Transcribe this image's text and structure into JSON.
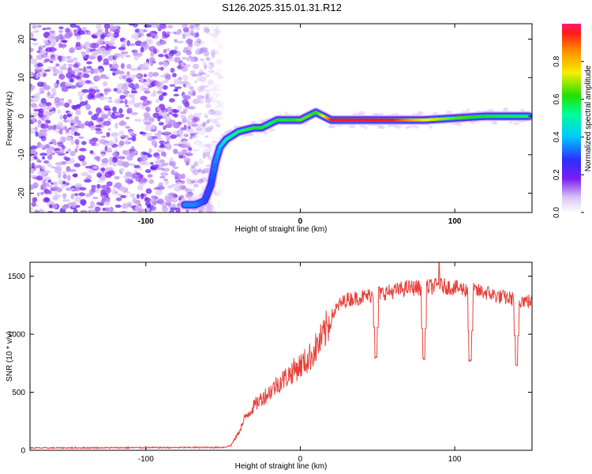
{
  "title": "S126.2025.315.01.31.R12",
  "chart_data": [
    {
      "type": "heatmap",
      "xlabel": "Height of straight line (km)",
      "ylabel": "Frequency (Hz)",
      "xlim": [
        -175,
        150
      ],
      "ylim": [
        -25,
        24
      ],
      "x_ticks": [
        -100,
        0,
        100
      ],
      "x_tick_labels": [
        "-100",
        "0",
        "100"
      ],
      "y_ticks": [
        -20,
        -10,
        0,
        10,
        20
      ],
      "y_tick_labels": [
        "-20",
        "-10",
        "0",
        "10",
        "20"
      ],
      "colorbar": {
        "label": "Normalized spectral amplitude",
        "range": [
          0,
          1
        ],
        "ticks": [
          0.0,
          0.2,
          0.4,
          0.6,
          0.8
        ],
        "tick_labels": [
          "0.0",
          "0.2",
          "0.4",
          "0.6",
          "0.8"
        ]
      },
      "ridge": {
        "x": [
          -75,
          -68,
          -62,
          -58,
          -55,
          -52,
          -48,
          -40,
          -30,
          -25,
          -20,
          -15,
          -10,
          -5,
          0,
          5,
          10,
          15,
          20,
          40,
          60,
          80,
          100,
          120,
          148
        ],
        "y": [
          -23,
          -23,
          -22,
          -18,
          -12,
          -8,
          -6,
          -4,
          -3,
          -3,
          -2,
          -1,
          -1,
          -1,
          -1,
          0,
          1,
          0,
          -1,
          -1,
          -1,
          -1,
          -0.5,
          0,
          0
        ],
        "amplitude": [
          0.35,
          0.35,
          0.3,
          0.3,
          0.35,
          0.4,
          0.5,
          0.55,
          0.6,
          0.6,
          0.55,
          0.6,
          0.6,
          0.62,
          0.65,
          0.65,
          0.6,
          0.75,
          0.95,
          0.95,
          0.95,
          0.75,
          0.65,
          0.6,
          0.55
        ]
      },
      "noise_region_xlim": [
        -175,
        -50
      ]
    },
    {
      "type": "line",
      "xlabel": "Height of straight line (km)",
      "ylabel": "SNR (10 * v/v)",
      "xlim": [
        -175,
        150
      ],
      "ylim": [
        0,
        1620
      ],
      "x_ticks": [
        -100,
        0,
        100
      ],
      "x_tick_labels": [
        "-100",
        "0",
        "100"
      ],
      "y_ticks": [
        0,
        500,
        1000,
        1500
      ],
      "y_tick_labels": [
        "0",
        "500",
        "1000",
        "1500"
      ],
      "color": "#e8403a",
      "envelope": {
        "x": [
          -175,
          -50,
          -45,
          -40,
          -35,
          -30,
          -25,
          -20,
          -15,
          -10,
          -5,
          0,
          5,
          10,
          15,
          20,
          25,
          30,
          40,
          50,
          60,
          70,
          80,
          90,
          100,
          110,
          120,
          130,
          140,
          150
        ],
        "y": [
          20,
          25,
          40,
          150,
          300,
          380,
          450,
          500,
          570,
          620,
          680,
          730,
          780,
          880,
          980,
          1150,
          1250,
          1300,
          1320,
          1350,
          1370,
          1400,
          1400,
          1420,
          1400,
          1380,
          1360,
          1320,
          1300,
          1280
        ]
      },
      "dips": [
        {
          "x": 49,
          "y": 800
        },
        {
          "x": 80,
          "y": 790
        },
        {
          "x": 110,
          "y": 770
        },
        {
          "x": 140,
          "y": 730
        }
      ],
      "peak": {
        "x": 90,
        "y": 1620
      }
    }
  ]
}
